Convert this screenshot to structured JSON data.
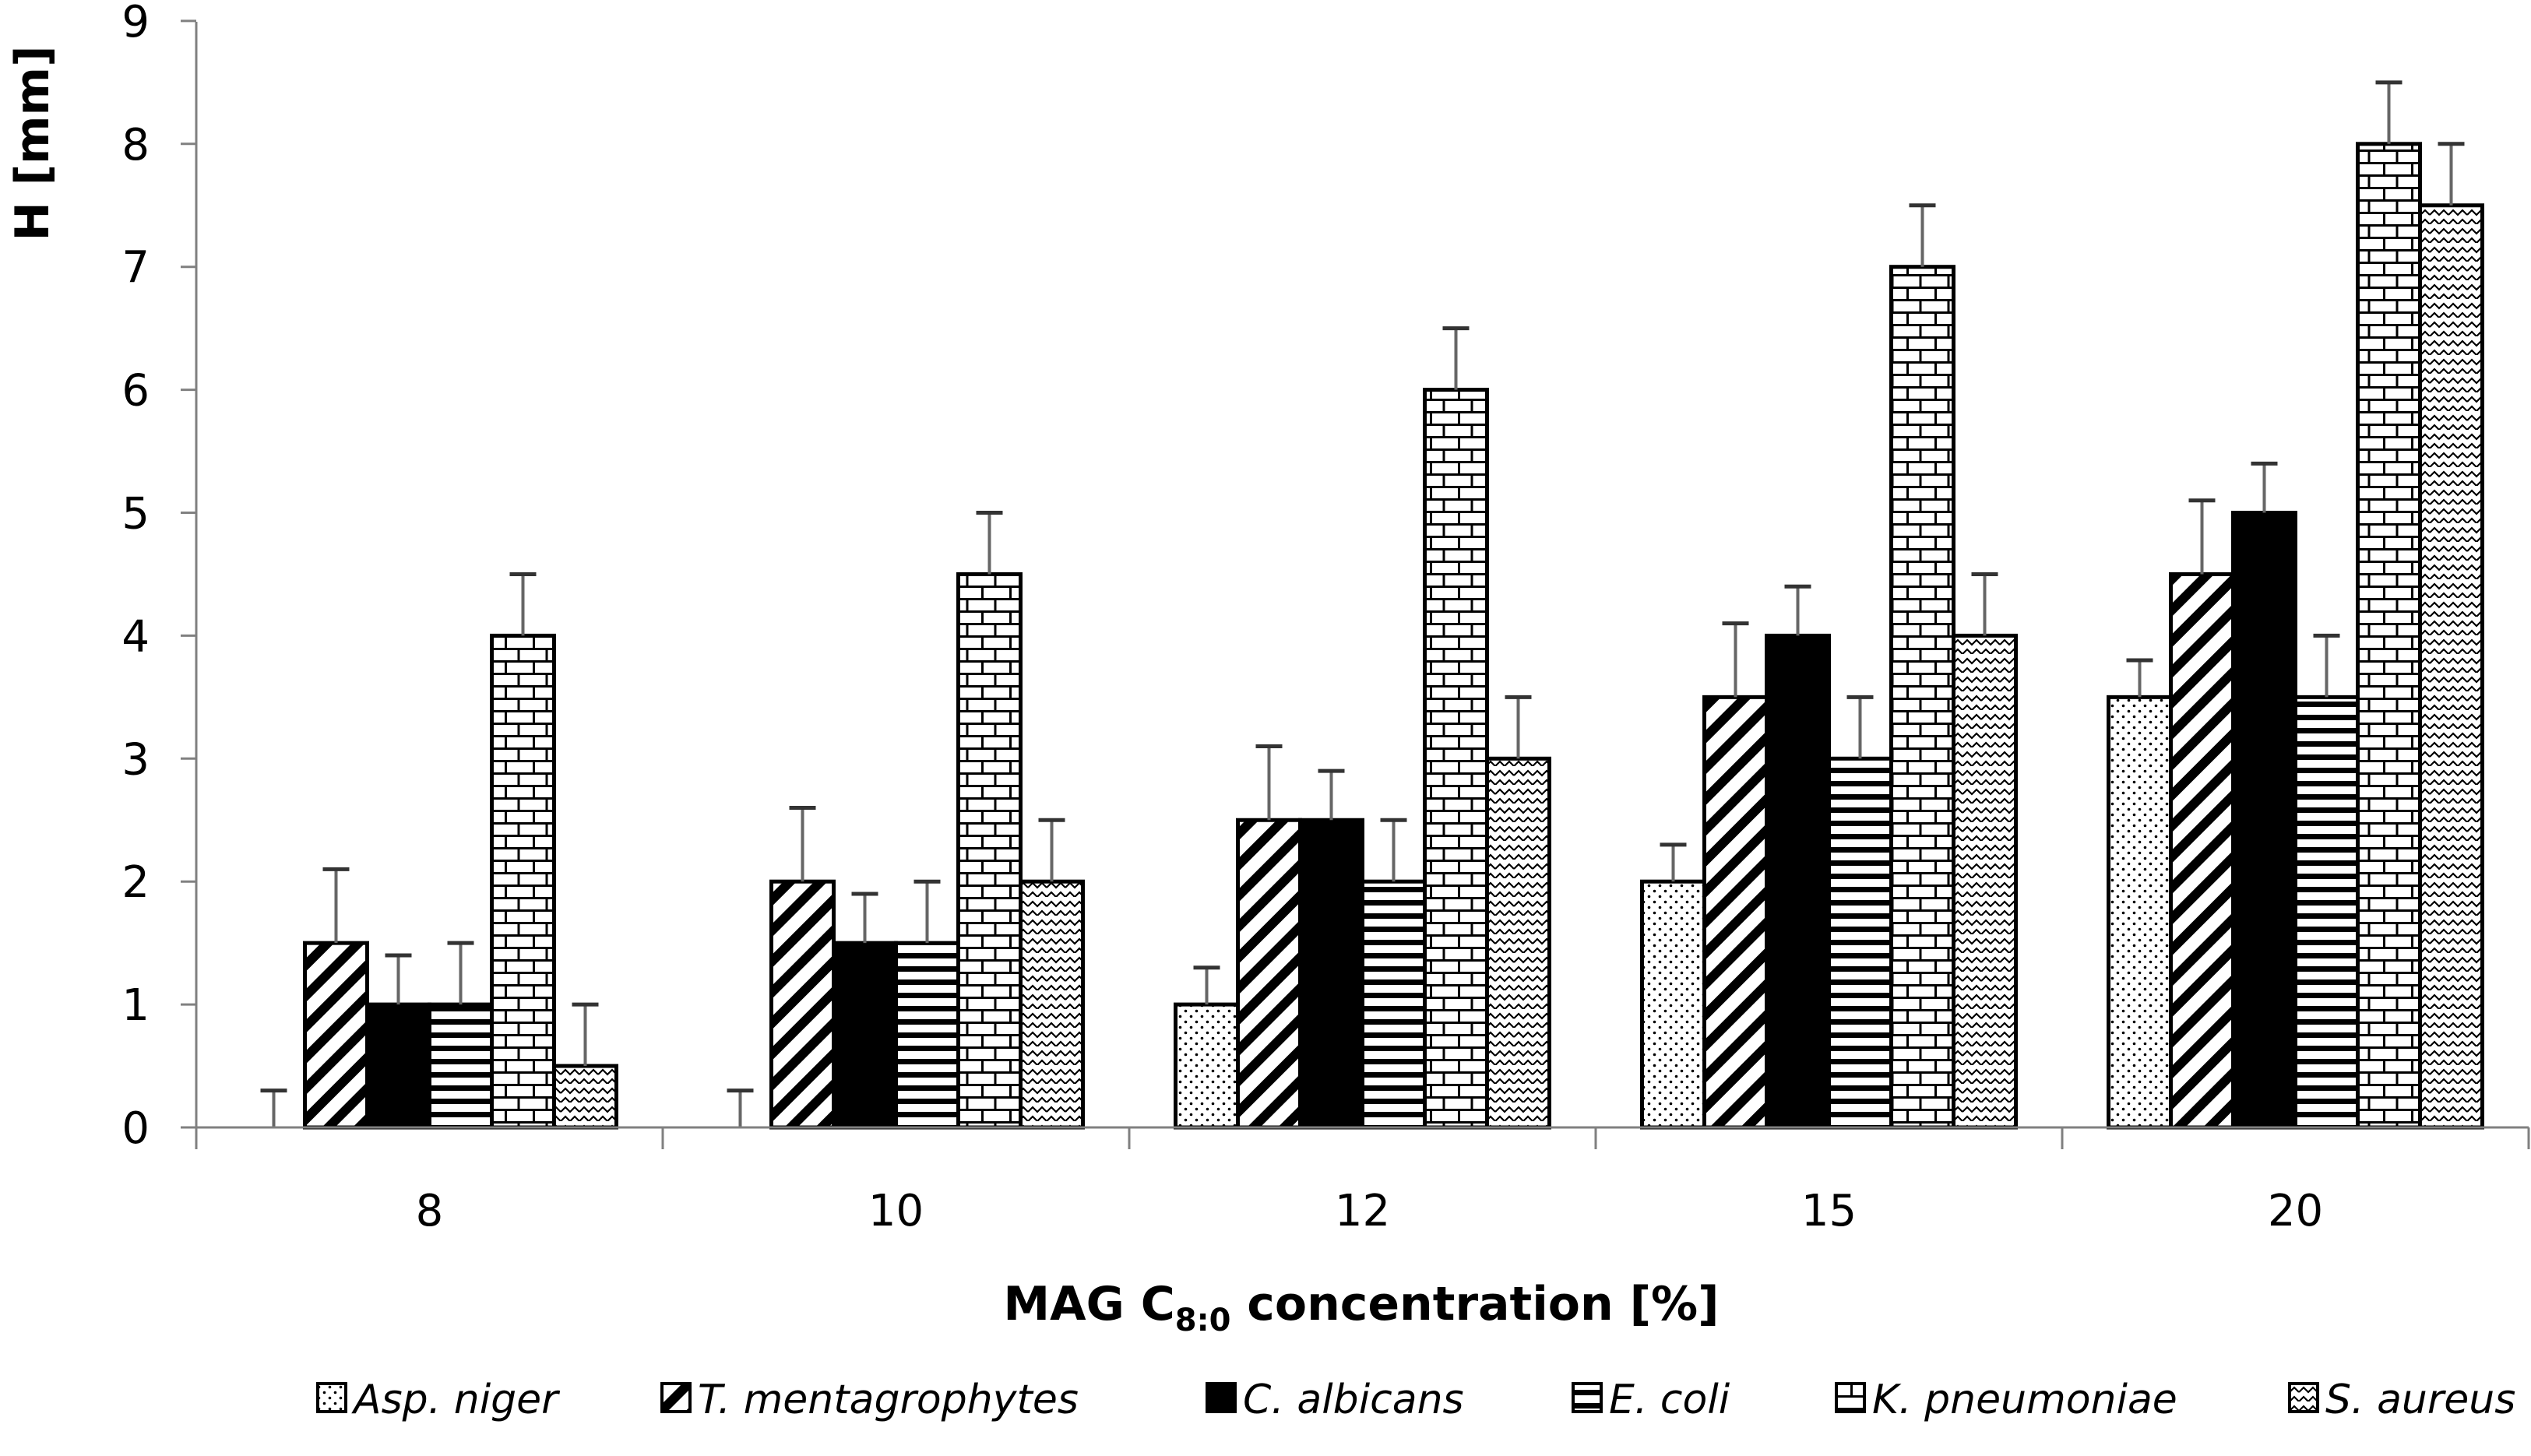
{
  "chart_data": {
    "type": "bar",
    "title": "",
    "xlabel": "MAG C8:0 concentration [%]",
    "xlabel_main": "MAG C",
    "xlabel_sub": "8:0",
    "xlabel_tail": " concentration [%]",
    "ylabel": "H [mm]",
    "ylim": [
      0,
      9
    ],
    "yticks": [
      0,
      1,
      2,
      3,
      4,
      5,
      6,
      7,
      8,
      9
    ],
    "categories": [
      "8",
      "10",
      "12",
      "15",
      "20"
    ],
    "legend_position": "bottom",
    "grid": false,
    "series": [
      {
        "name": "Asp. niger",
        "pattern": "dots",
        "values": [
          0,
          0,
          1,
          2,
          3.5
        ],
        "errors": [
          0.3,
          0.3,
          0.3,
          0.3,
          0.3
        ]
      },
      {
        "name": "T. mentagrophytes",
        "pattern": "diagonal",
        "values": [
          1.5,
          2,
          2.5,
          3.5,
          4.5
        ],
        "errors": [
          0.6,
          0.6,
          0.6,
          0.6,
          0.6
        ]
      },
      {
        "name": "C. albicans",
        "pattern": "solid",
        "values": [
          1,
          1.5,
          2.5,
          4,
          5
        ],
        "errors": [
          0.4,
          0.4,
          0.4,
          0.4,
          0.4
        ]
      },
      {
        "name": "E. coli",
        "pattern": "horizontal",
        "values": [
          1,
          1.5,
          2,
          3,
          3.5
        ],
        "errors": [
          0.5,
          0.5,
          0.5,
          0.5,
          0.5
        ]
      },
      {
        "name": "K. pneumoniae",
        "pattern": "brick",
        "values": [
          4,
          4.5,
          6,
          7,
          8
        ],
        "errors": [
          0.5,
          0.5,
          0.5,
          0.5,
          0.5
        ]
      },
      {
        "name": "S. aureus",
        "pattern": "waves",
        "values": [
          0.5,
          2,
          3,
          4,
          7.5
        ],
        "errors": [
          0.5,
          0.5,
          0.5,
          0.5,
          0.5
        ]
      }
    ],
    "colors": {
      "bar_stroke": "#000000",
      "axis": "#808080",
      "fill": "#ffffff"
    }
  }
}
